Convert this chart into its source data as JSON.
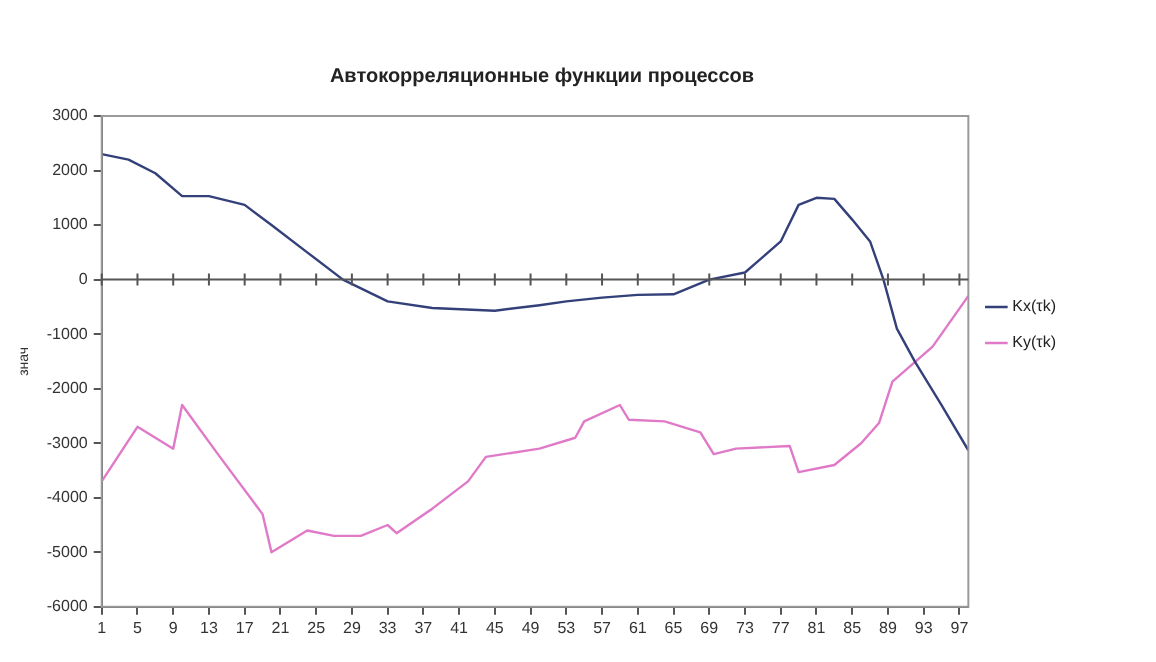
{
  "chart_data": {
    "type": "line",
    "title": "Автокорреляционные функции процессов",
    "ylabel": "знач",
    "series": [
      {
        "name": "Kx(τk)",
        "color": "#33407a",
        "x": [
          1,
          4,
          7,
          10,
          13,
          17,
          20,
          24,
          28,
          33,
          38,
          45,
          50,
          53,
          57,
          61,
          65,
          69,
          73,
          77,
          79,
          81,
          83,
          85,
          87,
          88.5,
          90,
          92,
          95,
          98
        ],
        "values": [
          2300,
          2200,
          1950,
          1530,
          1530,
          1370,
          1000,
          500,
          0,
          -400,
          -520,
          -570,
          -470,
          -400,
          -330,
          -280,
          -270,
          0,
          130,
          700,
          1370,
          1500,
          1480,
          1100,
          700,
          0,
          -900,
          -1500,
          -2300,
          -3130
        ]
      },
      {
        "name": "Ky(τk)",
        "color": "#e07ac8",
        "x": [
          1,
          5,
          9,
          10,
          14,
          19,
          20,
          24,
          27,
          30,
          33,
          34,
          38,
          42,
          44,
          50,
          54,
          55,
          59,
          60,
          64,
          68,
          69.5,
          72,
          78,
          79,
          83,
          86,
          88,
          89.5,
          94,
          98
        ],
        "values": [
          -3700,
          -2700,
          -3100,
          -2300,
          -3200,
          -4300,
          -5000,
          -4600,
          -4700,
          -4700,
          -4500,
          -4650,
          -4200,
          -3700,
          -3250,
          -3100,
          -2900,
          -2600,
          -2300,
          -2570,
          -2600,
          -2800,
          -3200,
          -3100,
          -3050,
          -3530,
          -3400,
          -3000,
          -2630,
          -1870,
          -1230,
          -300
        ]
      }
    ],
    "xlim": [
      1,
      98
    ],
    "xticks": [
      1,
      5,
      9,
      13,
      17,
      21,
      25,
      29,
      33,
      37,
      41,
      45,
      49,
      53,
      57,
      61,
      65,
      69,
      73,
      77,
      81,
      85,
      89,
      93,
      97
    ],
    "ylim": [
      -6000,
      3000
    ],
    "yticks": [
      -6000,
      -5000,
      -4000,
      -3000,
      -2000,
      -1000,
      0,
      1000,
      2000,
      3000
    ],
    "ref_lines": [
      {
        "axis": "y",
        "value": 0,
        "color": "#555555"
      }
    ],
    "grid": false,
    "legend": "right",
    "marker": "none",
    "line_style": "solid"
  }
}
